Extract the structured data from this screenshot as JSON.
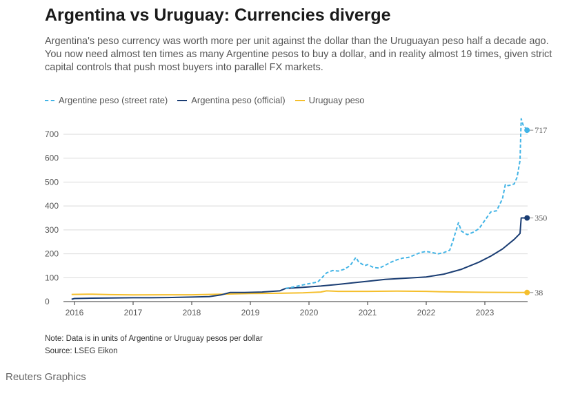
{
  "header": {
    "title": "Argentina vs Uruguay: Currencies diverge",
    "subtitle": "Argentina's peso currency was worth more per unit against the dollar than the Uruguayan peso half a decade ago. You now need almost ten times as many Argentine pesos to buy a dollar, and in reality almost 19 times, given strict capital controls that push most buyers into parallel FX markets."
  },
  "footer": {
    "note": "Note: Data is in units of Argentine or Uruguay pesos per dollar",
    "source": "Source: LSEG Eikon",
    "brand": "Reuters Graphics"
  },
  "chart_data": {
    "type": "line",
    "ylim": [
      0,
      750
    ],
    "xlim": [
      2015.9,
      2023.9
    ],
    "yticks": [
      0,
      100,
      200,
      300,
      400,
      500,
      600,
      700
    ],
    "xticks": [
      2016,
      2017,
      2018,
      2019,
      2020,
      2021,
      2022,
      2023
    ],
    "grid": true,
    "legend_position": "top-left",
    "series": [
      {
        "name": "Argentine peso (street rate)",
        "color": "#42b4e6",
        "style": "dashed",
        "end_label": "717",
        "points": [
          [
            2019.6,
            55
          ],
          [
            2019.75,
            62
          ],
          [
            2019.9,
            70
          ],
          [
            2020.0,
            75
          ],
          [
            2020.15,
            82
          ],
          [
            2020.3,
            120
          ],
          [
            2020.4,
            130
          ],
          [
            2020.5,
            128
          ],
          [
            2020.6,
            135
          ],
          [
            2020.7,
            150
          ],
          [
            2020.8,
            185
          ],
          [
            2020.85,
            165
          ],
          [
            2020.95,
            150
          ],
          [
            2021.0,
            155
          ],
          [
            2021.1,
            143
          ],
          [
            2021.2,
            140
          ],
          [
            2021.3,
            152
          ],
          [
            2021.4,
            165
          ],
          [
            2021.5,
            175
          ],
          [
            2021.6,
            182
          ],
          [
            2021.7,
            185
          ],
          [
            2021.8,
            195
          ],
          [
            2021.9,
            205
          ],
          [
            2022.0,
            210
          ],
          [
            2022.1,
            205
          ],
          [
            2022.2,
            200
          ],
          [
            2022.3,
            205
          ],
          [
            2022.4,
            215
          ],
          [
            2022.45,
            250
          ],
          [
            2022.5,
            290
          ],
          [
            2022.55,
            330
          ],
          [
            2022.6,
            295
          ],
          [
            2022.7,
            280
          ],
          [
            2022.8,
            290
          ],
          [
            2022.9,
            305
          ],
          [
            2023.0,
            340
          ],
          [
            2023.1,
            375
          ],
          [
            2023.2,
            380
          ],
          [
            2023.3,
            430
          ],
          [
            2023.35,
            490
          ],
          [
            2023.4,
            485
          ],
          [
            2023.5,
            492
          ],
          [
            2023.55,
            520
          ],
          [
            2023.6,
            590
          ],
          [
            2023.62,
            765
          ],
          [
            2023.65,
            740
          ],
          [
            2023.72,
            717
          ]
        ]
      },
      {
        "name": "Argentina peso (official)",
        "color": "#1a3d73",
        "style": "solid",
        "end_label": "350",
        "points": [
          [
            2015.95,
            9.7
          ],
          [
            2016.0,
            13
          ],
          [
            2016.3,
            14.5
          ],
          [
            2016.6,
            15
          ],
          [
            2017.0,
            16
          ],
          [
            2017.3,
            16
          ],
          [
            2017.6,
            17
          ],
          [
            2018.0,
            19
          ],
          [
            2018.3,
            21
          ],
          [
            2018.5,
            28
          ],
          [
            2018.65,
            38
          ],
          [
            2018.9,
            38
          ],
          [
            2019.2,
            40
          ],
          [
            2019.5,
            45
          ],
          [
            2019.6,
            55
          ],
          [
            2019.9,
            60
          ],
          [
            2020.2,
            65
          ],
          [
            2020.5,
            72
          ],
          [
            2020.8,
            80
          ],
          [
            2021.0,
            85
          ],
          [
            2021.3,
            93
          ],
          [
            2021.6,
            97
          ],
          [
            2022.0,
            103
          ],
          [
            2022.3,
            115
          ],
          [
            2022.6,
            135
          ],
          [
            2022.9,
            165
          ],
          [
            2023.1,
            190
          ],
          [
            2023.3,
            220
          ],
          [
            2023.5,
            260
          ],
          [
            2023.6,
            285
          ],
          [
            2023.62,
            350
          ],
          [
            2023.72,
            350
          ]
        ]
      },
      {
        "name": "Uruguay peso",
        "color": "#f5bf2c",
        "style": "solid",
        "end_label": "38",
        "points": [
          [
            2015.95,
            30
          ],
          [
            2016.3,
            31
          ],
          [
            2016.6,
            29
          ],
          [
            2017.0,
            28
          ],
          [
            2017.5,
            28.5
          ],
          [
            2018.0,
            28.5
          ],
          [
            2018.5,
            31
          ],
          [
            2019.0,
            34
          ],
          [
            2019.5,
            35
          ],
          [
            2019.9,
            37
          ],
          [
            2020.2,
            40
          ],
          [
            2020.3,
            45
          ],
          [
            2020.5,
            43
          ],
          [
            2021.0,
            43
          ],
          [
            2021.5,
            44
          ],
          [
            2022.0,
            43
          ],
          [
            2022.3,
            41
          ],
          [
            2022.6,
            40
          ],
          [
            2023.0,
            39
          ],
          [
            2023.5,
            38
          ],
          [
            2023.72,
            38
          ]
        ]
      }
    ]
  }
}
